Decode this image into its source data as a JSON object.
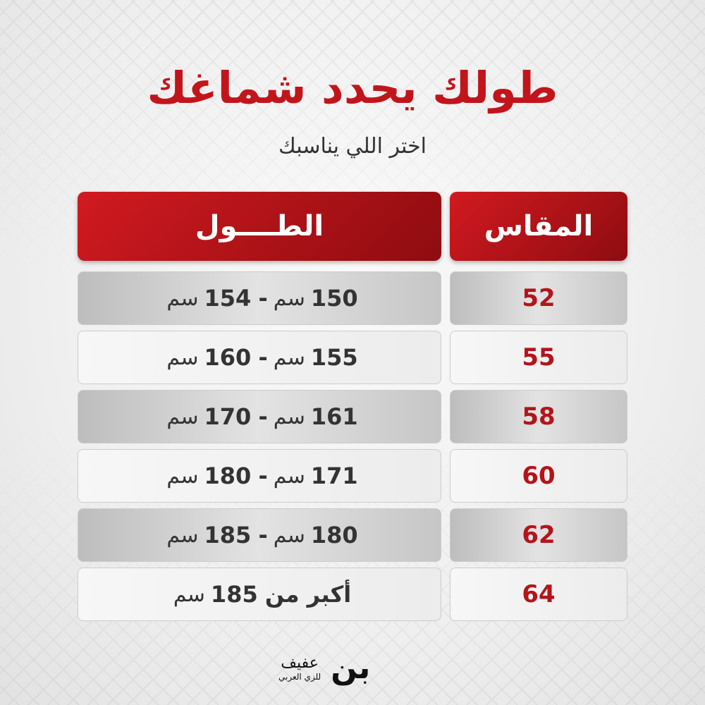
{
  "title": "طولك يحدد شماغك",
  "subtitle": "اختر اللي يناسبك",
  "headers": {
    "length": "الطــــول",
    "size": "المقاس"
  },
  "unit": "سم",
  "rows": [
    {
      "size": "52",
      "from": "150",
      "to": "154"
    },
    {
      "size": "55",
      "from": "155",
      "to": "160"
    },
    {
      "size": "58",
      "from": "161",
      "to": "170"
    },
    {
      "size": "60",
      "from": "171",
      "to": "180"
    },
    {
      "size": "62",
      "from": "180",
      "to": "185"
    },
    {
      "size": "64",
      "text": "أكبر من",
      "value": "185"
    }
  ],
  "logo": {
    "mark": "بن",
    "name": "عفيف",
    "tagline": "للزي العربي"
  },
  "colors": {
    "accent": "#c2151b"
  }
}
